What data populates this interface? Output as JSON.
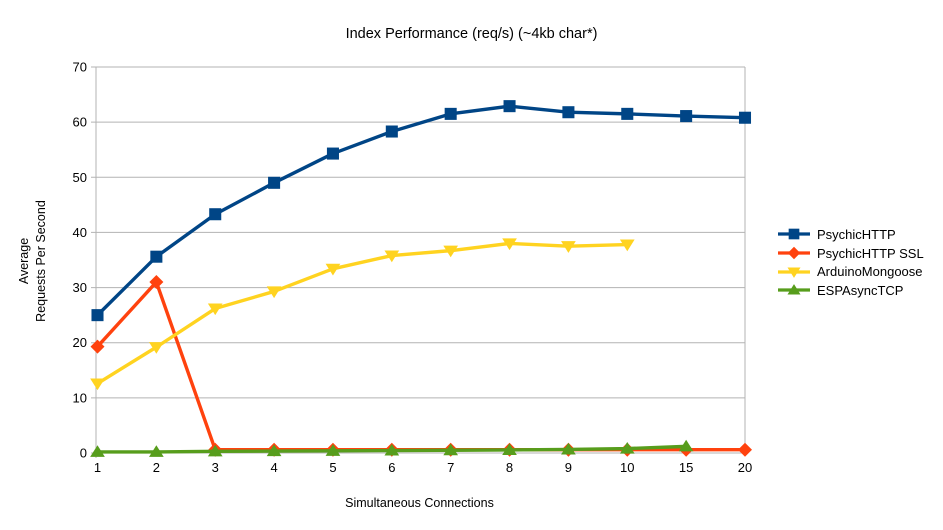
{
  "chart_data": {
    "type": "line",
    "title": "Index Performance (req/s) (~4kb char*)",
    "xlabel": "Simultaneous Connections",
    "ylabel": "Average Requests Per Second",
    "ylabel_lines": [
      "Average",
      "Requests Per Second"
    ],
    "categories": [
      "1",
      "2",
      "3",
      "4",
      "5",
      "6",
      "7",
      "8",
      "9",
      "10",
      "15",
      "20"
    ],
    "ylim": [
      0,
      70
    ],
    "ytick_step": 10,
    "grid": true,
    "legend_position": "right",
    "colors": {
      "grid": "#b3b3b3",
      "axis": "#b3b3b3",
      "text": "#000000",
      "background": "#ffffff"
    },
    "series": [
      {
        "name": "PsychicHTTP",
        "color": "#004586",
        "marker": "square",
        "values": [
          25.0,
          35.6,
          43.3,
          49.0,
          54.3,
          58.3,
          61.5,
          62.9,
          61.8,
          61.5,
          61.1,
          60.8
        ]
      },
      {
        "name": "PsychicHTTP SSL",
        "color": "#ff420e",
        "marker": "diamond",
        "values": [
          19.3,
          31.0,
          0.6,
          0.6,
          0.6,
          0.6,
          0.6,
          0.6,
          0.6,
          0.6,
          0.6,
          0.6
        ]
      },
      {
        "name": "ArduinoMongoose",
        "color": "#ffd320",
        "marker": "triangle-down",
        "values": [
          12.6,
          19.2,
          26.2,
          29.3,
          33.4,
          35.8,
          36.7,
          38.0,
          37.5,
          37.8
        ]
      },
      {
        "name": "ESPAsyncTCP",
        "color": "#579d1c",
        "marker": "triangle-up",
        "values": [
          0.2,
          0.2,
          0.3,
          0.35,
          0.4,
          0.45,
          0.5,
          0.55,
          0.65,
          0.8,
          1.2
        ]
      }
    ]
  }
}
